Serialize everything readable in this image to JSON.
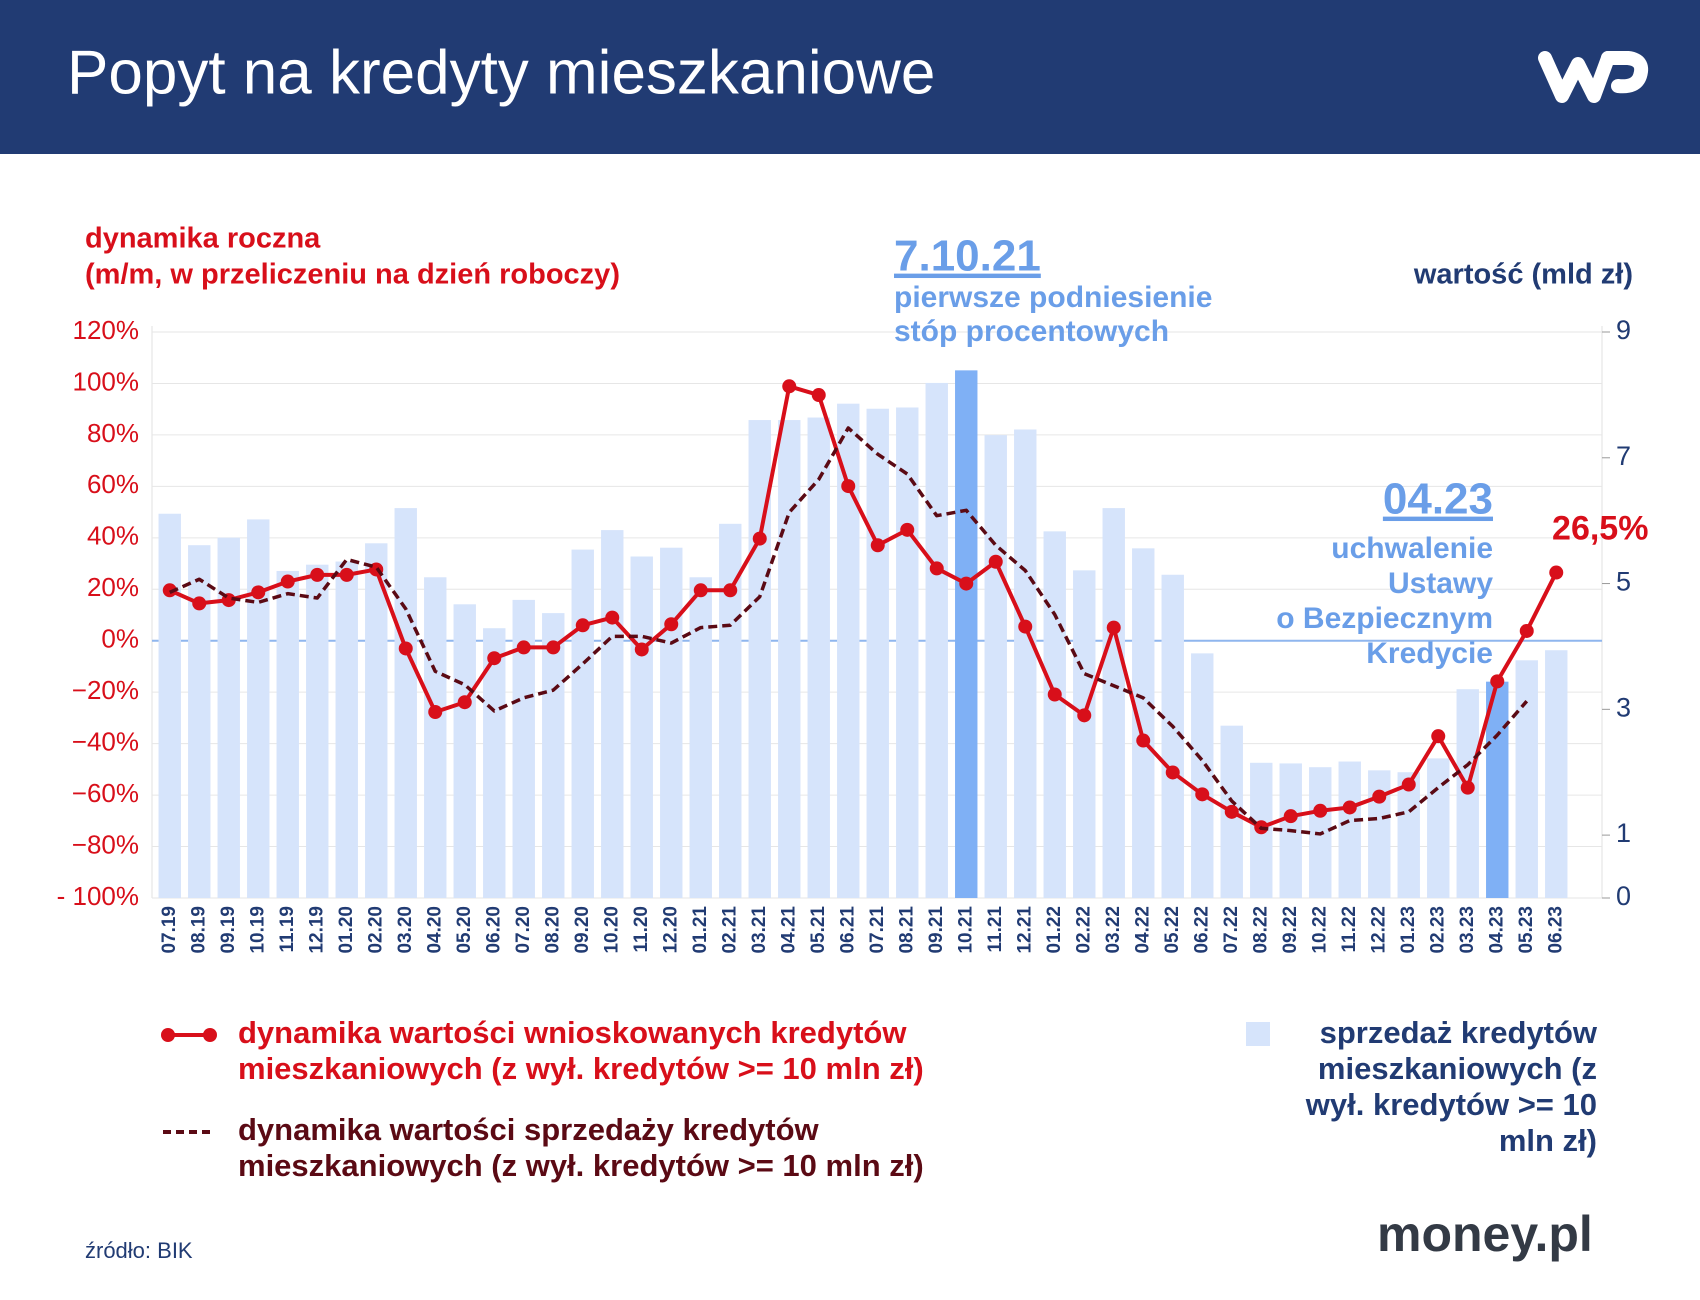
{
  "header": {
    "title": "Popyt na kredyty mieszkaniowe"
  },
  "chart_data": {
    "type": "combo",
    "y_title": [
      "dynamika roczna",
      "(m/m, w przeliczeniu na dzień roboczy)"
    ],
    "y2_title": "wartość (mld zł)",
    "categories": [
      "07.19",
      "08.19",
      "09.19",
      "10.19",
      "11.19",
      "12.19",
      "01.20",
      "02.20",
      "03.20",
      "04.20",
      "05.20",
      "06.20",
      "07.20",
      "08.20",
      "09.20",
      "10.20",
      "11.20",
      "12.20",
      "01.21",
      "02.21",
      "03.21",
      "04.21",
      "05.21",
      "06.21",
      "07.21",
      "08.21",
      "09.21",
      "10.21",
      "11.21",
      "12.21",
      "01.22",
      "02.22",
      "03.22",
      "04.22",
      "05.22",
      "06.22",
      "07.22",
      "08.22",
      "09.22",
      "10.22",
      "11.22",
      "12.22",
      "01.23",
      "02.23",
      "03.23",
      "04.23",
      "05.23",
      "06.23"
    ],
    "ylim": [
      -100,
      120
    ],
    "yticks": [
      {
        "value": -100,
        "label": "- 100%"
      },
      {
        "value": -80,
        "label": "−80%"
      },
      {
        "value": -60,
        "label": "−60%"
      },
      {
        "value": -40,
        "label": "−40%"
      },
      {
        "value": -20,
        "label": "−20%"
      },
      {
        "value": 0,
        "label": "0%"
      },
      {
        "value": 20,
        "label": "20%"
      },
      {
        "value": 40,
        "label": "40%"
      },
      {
        "value": 60,
        "label": "60%"
      },
      {
        "value": 80,
        "label": "80%"
      },
      {
        "value": 100,
        "label": "100%"
      },
      {
        "value": 120,
        "label": "120%"
      }
    ],
    "y2lim": [
      0,
      9
    ],
    "y2ticks": [
      0,
      1,
      3,
      5,
      7,
      9
    ],
    "grid": true,
    "series": [
      {
        "name": "dynamika wartości wnioskowanych kredytów mieszkaniowych (z wył. kredytów >= 10 mln zł)",
        "type": "line",
        "color": "#d80f1a",
        "markers": true,
        "values": [
          19.6,
          14.5,
          15.8,
          18.8,
          23,
          25.6,
          25.6,
          27.7,
          -3,
          -27.7,
          -23.9,
          -6.8,
          -2.6,
          -2.6,
          6,
          9,
          -3.4,
          6.4,
          19.6,
          19.6,
          39.7,
          98.9,
          95.5,
          60.1,
          37.1,
          43.1,
          28.1,
          22.2,
          30.7,
          5.5,
          -20.9,
          -29,
          5.1,
          -38.8,
          -51.2,
          -59.7,
          -66.5,
          -72.5,
          -68.2,
          -66.1,
          -64.8,
          -60.6,
          -55.9,
          -37.1,
          -57.1,
          -15.8,
          3.8,
          26.5
        ],
        "value_labels": [
          null,
          null,
          null,
          null,
          null,
          null,
          null,
          null,
          null,
          null,
          null,
          null,
          null,
          null,
          null,
          null,
          null,
          null,
          null,
          null,
          null,
          null,
          null,
          null,
          null,
          null,
          null,
          null,
          null,
          null,
          null,
          null,
          null,
          null,
          null,
          null,
          null,
          null,
          null,
          null,
          null,
          null,
          null,
          null,
          null,
          null,
          null,
          "26,5%"
        ]
      },
      {
        "name": "dynamika wartości sprzedaży kredytów mieszkaniowych (z wył. kredytów >= 10 mln zł)",
        "type": "line",
        "color": "#5b0a14",
        "dashed": true,
        "values": [
          18.8,
          23.9,
          16.6,
          14.9,
          18.3,
          16.6,
          31.6,
          28.6,
          12.4,
          -11.9,
          -17.1,
          -27.3,
          -22.2,
          -19.2,
          -9,
          1.7,
          1.7,
          -0.9,
          5.1,
          6,
          17.1,
          49.9,
          62.7,
          82.7,
          72.5,
          64.8,
          48.6,
          50.7,
          37.1,
          27.3,
          10.2,
          -12.8,
          -17.5,
          -22.2,
          -33.3,
          -46.5,
          -62.3,
          -72.9,
          -73.8,
          -75.1,
          -69.9,
          -69.1,
          -66.5,
          -57.1,
          -48.2,
          -36.7,
          -23.5,
          null
        ]
      },
      {
        "name": "sprzedaż kredytów mieszkaniowych (z wył. kredytów >= 10 mln zł)",
        "type": "bar",
        "axis": "y2",
        "color": "#d6e4fb",
        "colors": [
          "#d6e4fb",
          "#d6e4fb",
          "#d6e4fb",
          "#d6e4fb",
          "#d6e4fb",
          "#d6e4fb",
          "#d6e4fb",
          "#d6e4fb",
          "#d6e4fb",
          "#d6e4fb",
          "#d6e4fb",
          "#d6e4fb",
          "#d6e4fb",
          "#d6e4fb",
          "#d6e4fb",
          "#d6e4fb",
          "#d6e4fb",
          "#d6e4fb",
          "#d6e4fb",
          "#d6e4fb",
          "#d6e4fb",
          "#d6e4fb",
          "#d6e4fb",
          "#d6e4fb",
          "#d6e4fb",
          "#d6e4fb",
          "#d6e4fb",
          "#7fb0f5",
          "#d6e4fb",
          "#d6e4fb",
          "#d6e4fb",
          "#d6e4fb",
          "#d6e4fb",
          "#d6e4fb",
          "#d6e4fb",
          "#d6e4fb",
          "#d6e4fb",
          "#d6e4fb",
          "#d6e4fb",
          "#d6e4fb",
          "#d6e4fb",
          "#d6e4fb",
          "#d6e4fb",
          "#d6e4fb",
          "#d6e4fb",
          "#7fb0f5",
          "#d6e4fb",
          "#d6e4fb"
        ],
        "values": [
          6.11,
          5.61,
          5.73,
          6.02,
          5.2,
          5.3,
          5.35,
          5.64,
          6.2,
          5.1,
          4.67,
          4.29,
          4.74,
          4.53,
          5.54,
          5.85,
          5.43,
          5.57,
          5.1,
          5.95,
          7.6,
          7.6,
          7.64,
          7.86,
          7.78,
          7.8,
          8.19,
          8.39,
          7.36,
          7.45,
          5.83,
          5.21,
          6.2,
          5.56,
          5.14,
          3.89,
          2.74,
          2.15,
          2.14,
          2.08,
          2.17,
          2.03,
          2.0,
          2.22,
          3.32,
          3.44,
          3.78,
          3.94
        ]
      }
    ],
    "annotations": [
      {
        "title": "7.10.21",
        "text": [
          "pierwsze podniesienie",
          "stóp procentowych"
        ]
      },
      {
        "title": "04.23",
        "text": [
          "uchwalenie",
          "Ustawy",
          "o Bezpiecznym",
          "Kredycie"
        ]
      }
    ]
  },
  "footer": {
    "source": "źródło: BIK",
    "brand": "money.pl"
  }
}
